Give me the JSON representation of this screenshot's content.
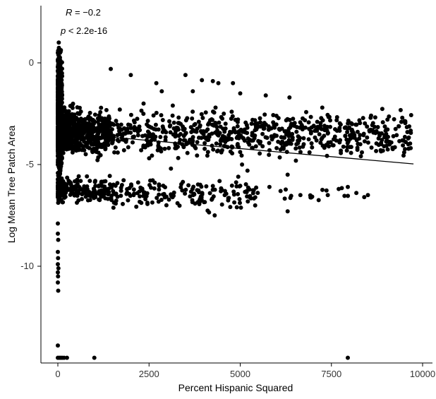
{
  "chart_data": {
    "type": "scatter",
    "title": "",
    "xlabel": "Percent Hispanic Squared",
    "ylabel": "Log Mean Tree Patch Area",
    "xlim": [
      -900,
      10600
    ],
    "ylim": [
      -14.5,
      2.5
    ],
    "x_ticks": [
      0,
      2500,
      5000,
      7500,
      10000
    ],
    "x_tick_labels": [
      "0",
      "2500",
      "5000",
      "7500",
      "10000"
    ],
    "y_ticks": [
      0,
      -5,
      -10
    ],
    "y_tick_labels": [
      "0",
      "-5",
      "-10"
    ],
    "grid": false,
    "legend": "none",
    "annotations": {
      "r_text": "R = −0.2",
      "p_text": "p < 2.2e-16"
    },
    "point_color": "#000000",
    "trend_line": {
      "x": [
        0,
        9750
      ],
      "y": [
        -3.42,
        -4.97
      ]
    },
    "clusters": [
      {
        "x": [
          0,
          120
        ],
        "y": [
          -7.1,
          1.6
        ],
        "n": 700
      },
      {
        "x": [
          0,
          1500
        ],
        "y": [
          -5.0,
          -1.8
        ],
        "n": 700
      },
      {
        "x": [
          0,
          1500
        ],
        "y": [
          -7.1,
          -5.4
        ],
        "n": 220
      },
      {
        "x": [
          1500,
          9700
        ],
        "y": [
          -5.0,
          -2.0
        ],
        "n": 650
      },
      {
        "x": [
          1500,
          5500
        ],
        "y": [
          -7.5,
          -5.4
        ],
        "n": 170
      },
      {
        "x": [
          5500,
          8600
        ],
        "y": [
          -7.2,
          -5.8
        ],
        "n": 16
      }
    ],
    "points": [
      {
        "x": 1450,
        "y": -0.3
      },
      {
        "x": 2000,
        "y": -0.6
      },
      {
        "x": 2700,
        "y": -1.0
      },
      {
        "x": 3500,
        "y": -0.6
      },
      {
        "x": 3950,
        "y": -0.85
      },
      {
        "x": 4250,
        "y": -0.9
      },
      {
        "x": 4400,
        "y": -1.0
      },
      {
        "x": 4800,
        "y": -1.0
      },
      {
        "x": 5000,
        "y": -1.5
      },
      {
        "x": 5700,
        "y": -1.6
      },
      {
        "x": 6350,
        "y": -1.7
      },
      {
        "x": 2850,
        "y": -1.4
      },
      {
        "x": 3700,
        "y": -1.4
      },
      {
        "x": 7250,
        "y": -2.2
      },
      {
        "x": 4550,
        "y": -2.5
      },
      {
        "x": 3150,
        "y": -2.1
      },
      {
        "x": 2350,
        "y": -2.0
      },
      {
        "x": 5050,
        "y": -5.0
      },
      {
        "x": 5200,
        "y": -5.3
      },
      {
        "x": 6300,
        "y": -5.5
      },
      {
        "x": 3100,
        "y": -5.2
      },
      {
        "x": 1550,
        "y": -4.4
      },
      {
        "x": 6900,
        "y": -4.4
      },
      {
        "x": 7700,
        "y": -6.2
      },
      {
        "x": 7950,
        "y": -6.1
      },
      {
        "x": 8400,
        "y": -6.6
      },
      {
        "x": 8500,
        "y": -6.5
      },
      {
        "x": 7400,
        "y": -6.5
      },
      {
        "x": 6650,
        "y": -6.5
      },
      {
        "x": 6300,
        "y": -7.3
      },
      {
        "x": 5800,
        "y": -6.1
      },
      {
        "x": 4300,
        "y": -7.5
      },
      {
        "x": 0,
        "y": -7.9
      },
      {
        "x": 0,
        "y": -8.4
      },
      {
        "x": 10,
        "y": -8.7
      },
      {
        "x": 0,
        "y": -9.3
      },
      {
        "x": 5,
        "y": -9.6
      },
      {
        "x": 0,
        "y": -9.9
      },
      {
        "x": 15,
        "y": -10.1
      },
      {
        "x": 0,
        "y": -10.3
      },
      {
        "x": 5,
        "y": -10.5
      },
      {
        "x": 0,
        "y": -10.8
      },
      {
        "x": 10,
        "y": -11.2
      },
      {
        "x": 0,
        "y": -13.9
      },
      {
        "x": 0,
        "y": -14.5
      },
      {
        "x": 40,
        "y": -14.5
      },
      {
        "x": 80,
        "y": -14.5
      },
      {
        "x": 120,
        "y": -14.5
      },
      {
        "x": 170,
        "y": -14.5
      },
      {
        "x": 250,
        "y": -14.5
      },
      {
        "x": 1000,
        "y": -14.5
      },
      {
        "x": 7950,
        "y": -14.5
      }
    ]
  }
}
